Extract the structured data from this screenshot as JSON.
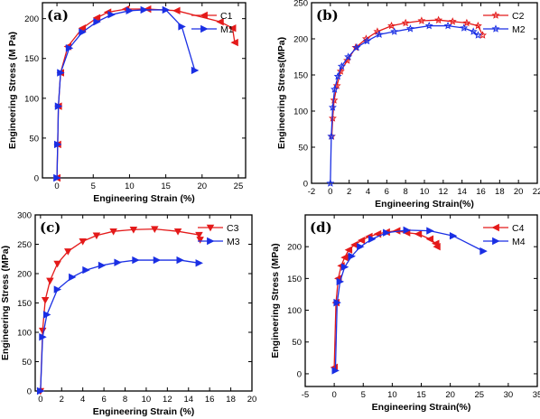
{
  "chart_data": [
    {
      "type": "line",
      "panel_label": "(a)",
      "xlabel": "Engineering Strain (%)",
      "ylabel": "Engineering Stress (M Pa)",
      "xlim": [
        -2,
        26
      ],
      "ylim": [
        0,
        220
      ],
      "xticks": [
        0,
        5,
        10,
        15,
        20,
        25
      ],
      "yticks": [
        0,
        50,
        100,
        150,
        200
      ],
      "legend_position": "top-right",
      "series": [
        {
          "name": "C1",
          "color": "#e41a1a",
          "marker": "triangle-left",
          "x": [
            0,
            0.1,
            0.2,
            0.5,
            1.5,
            3.5,
            5.5,
            7,
            9.5,
            12.5,
            16.5,
            22.5,
            24.2,
            24.5
          ],
          "y": [
            0,
            42,
            90,
            132,
            165,
            188,
            201,
            208,
            212,
            212,
            210,
            196,
            188,
            170
          ]
        },
        {
          "name": "M1",
          "color": "#1a2fe4",
          "marker": "triangle-right",
          "x": [
            0,
            0.1,
            0.2,
            0.5,
            1.7,
            3.5,
            5.5,
            7.5,
            10,
            12,
            15,
            17.2,
            19
          ],
          "y": [
            0,
            42,
            90,
            132,
            163,
            183,
            196,
            205,
            210,
            211,
            211,
            190,
            135
          ]
        }
      ]
    },
    {
      "type": "line",
      "panel_label": "(b)",
      "xlabel": "Engineering Strain(%)",
      "ylabel": "Engineering Stress(MPa)",
      "xlim": [
        -2,
        22
      ],
      "ylim": [
        0,
        250
      ],
      "xticks": [
        -2,
        0,
        2,
        4,
        6,
        8,
        10,
        12,
        14,
        16,
        18,
        20,
        22
      ],
      "yticks": [
        0,
        50,
        100,
        150,
        200,
        250
      ],
      "legend_position": "top-right",
      "series": [
        {
          "name": "C2",
          "color": "#e41a1a",
          "marker": "star",
          "x": [
            0.15,
            0.25,
            0.4,
            0.7,
            1.1,
            1.8,
            2.7,
            3.8,
            5,
            6.5,
            8,
            9.7,
            11.5,
            13,
            14.5,
            15.7,
            16.2
          ],
          "y": [
            65,
            90,
            115,
            135,
            155,
            170,
            188,
            200,
            210,
            218,
            222,
            225,
            226,
            224,
            222,
            218,
            205
          ]
        },
        {
          "name": "M2",
          "color": "#1a2fe4",
          "marker": "star",
          "x": [
            0,
            0.1,
            0.25,
            0.45,
            0.8,
            1.2,
            1.9,
            2.8,
            3.9,
            5.2,
            6.8,
            8.5,
            10.5,
            12.5,
            14.2,
            15.2,
            15.7
          ],
          "y": [
            0,
            65,
            105,
            130,
            148,
            162,
            175,
            188,
            197,
            206,
            210,
            214,
            218,
            218,
            215,
            210,
            205
          ]
        }
      ]
    },
    {
      "type": "line",
      "panel_label": "(c)",
      "xlabel": "Engineering Strain (%)",
      "ylabel": "Engineering Stress (MPa)",
      "xlim": [
        -0.5,
        20
      ],
      "ylim": [
        0,
        300
      ],
      "xticks": [
        0,
        2,
        4,
        6,
        8,
        10,
        12,
        14,
        16,
        18,
        20
      ],
      "yticks": [
        0,
        50,
        100,
        150,
        200,
        250,
        300
      ],
      "legend_position": "top-right",
      "series": [
        {
          "name": "C3",
          "color": "#e41a1a",
          "marker": "triangle-down",
          "x": [
            0,
            0.2,
            0.45,
            0.9,
            1.6,
            2.6,
            4,
            5.3,
            6.9,
            8.8,
            10.8,
            13,
            15,
            15.1
          ],
          "y": [
            0,
            103,
            155,
            188,
            217,
            238,
            255,
            265,
            272,
            275,
            276,
            272,
            266,
            258
          ]
        },
        {
          "name": "M3",
          "color": "#1a2fe4",
          "marker": "triangle-right",
          "x": [
            0,
            0.2,
            0.6,
            1.6,
            3,
            4.3,
            5.8,
            7.3,
            9,
            11,
            13.2,
            15
          ],
          "y": [
            0,
            92,
            130,
            173,
            194,
            206,
            214,
            219,
            223,
            223,
            223,
            218
          ]
        }
      ]
    },
    {
      "type": "line",
      "panel_label": "(d)",
      "xlabel": "Engineering Strain(%)",
      "ylabel": "Engineering Stress (MPa)",
      "xlim": [
        -5,
        35
      ],
      "ylim": [
        -20,
        250
      ],
      "xticks": [
        -5,
        0,
        5,
        10,
        15,
        20,
        25,
        30,
        35
      ],
      "yticks": [
        0,
        50,
        100,
        150,
        200
      ],
      "legend_position": "top-right",
      "series": [
        {
          "name": "C4",
          "color": "#e41a1a",
          "marker": "triangle-left",
          "x": [
            0,
            0.3,
            0.7,
            1.2,
            1.8,
            2.5,
            3.5,
            4.7,
            6,
            7.5,
            9,
            10.8,
            12.5,
            14.5,
            16.5,
            17.5,
            17.7
          ],
          "y": [
            10,
            112,
            150,
            170,
            183,
            195,
            203,
            210,
            216,
            220,
            223,
            225,
            222,
            220,
            212,
            205,
            200
          ]
        },
        {
          "name": "M4",
          "color": "#1a2fe4",
          "marker": "triangle-right",
          "x": [
            0.2,
            0.5,
            1,
            1.8,
            3,
            4.5,
            6.5,
            9,
            12.5,
            16.5,
            20.5,
            25.7
          ],
          "y": [
            5,
            112,
            145,
            168,
            185,
            200,
            212,
            222,
            226,
            225,
            217,
            193
          ]
        }
      ]
    }
  ]
}
